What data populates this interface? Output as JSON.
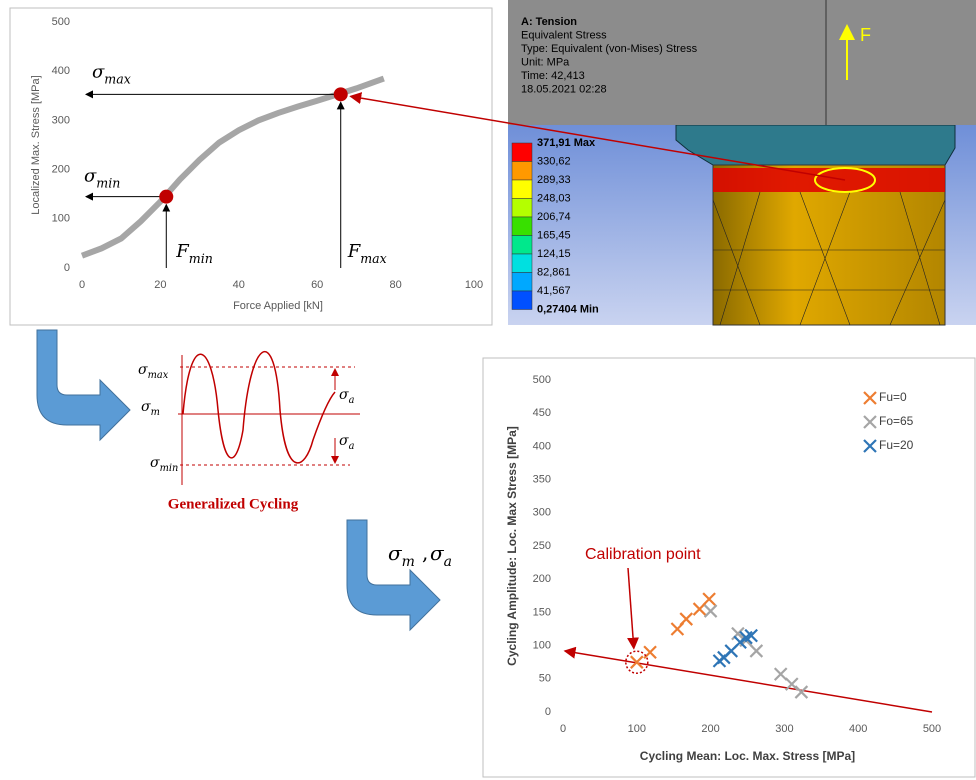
{
  "chart_data": [
    {
      "type": "line",
      "xlabel": "Force Applied [kN]",
      "ylabel": "Localized Max. Stress [MPa]",
      "x": [
        0,
        5,
        10,
        15,
        20,
        25,
        30,
        35,
        40,
        45,
        50,
        55,
        60,
        66,
        70,
        77
      ],
      "values": [
        25,
        40,
        60,
        95,
        135,
        180,
        220,
        255,
        280,
        300,
        315,
        328,
        340,
        355,
        365,
        385
      ],
      "color": "#a6a6a6",
      "markers": {
        "x": [
          21.5,
          66
        ],
        "values": [
          145,
          353
        ],
        "color": "#c00000"
      },
      "annotations": [
        {
          "text": "σ",
          "sub": "max"
        },
        {
          "text": "σ",
          "sub": "min"
        },
        {
          "text": "F",
          "sub": "min"
        },
        {
          "text": "F",
          "sub": "max"
        }
      ],
      "xlim": [
        0,
        100
      ],
      "xticks": [
        0,
        20,
        40,
        60,
        80,
        100
      ],
      "ylim": [
        0,
        500
      ],
      "yticks": [
        0,
        100,
        200,
        300,
        400,
        500
      ],
      "grid": false
    },
    {
      "type": "scatter",
      "xlabel": "Cycling Mean: Loc. Max. Stress [MPa]",
      "ylabel": "Cycling Amplitude: Loc. Max Stress [MPa]",
      "series": [
        {
          "name": "Fu=0",
          "color": "#ed7d31",
          "x": [
            100,
            118,
            155,
            167,
            185,
            198
          ],
          "values": [
            75,
            90,
            125,
            140,
            155,
            170
          ]
        },
        {
          "name": "Fo=65",
          "color": "#a5a5a5",
          "x": [
            200,
            237,
            248,
            262,
            295,
            310,
            323
          ],
          "values": [
            152,
            118,
            108,
            92,
            57,
            42,
            30
          ]
        },
        {
          "name": "Fu=20",
          "color": "#2e75b6",
          "x": [
            212,
            218,
            228,
            240,
            248,
            255
          ],
          "values": [
            77,
            82,
            92,
            105,
            112,
            115
          ]
        }
      ],
      "annotation": "Calibration point",
      "xlim": [
        0,
        500
      ],
      "xticks": [
        0,
        100,
        200,
        300,
        400,
        500
      ],
      "ylim": [
        0,
        500
      ],
      "yticks": [
        0,
        50,
        100,
        150,
        200,
        250,
        300,
        350,
        400,
        450,
        500
      ],
      "legend": "upper right",
      "grid": false
    }
  ],
  "fea_panel": {
    "header": [
      "A: Tension",
      "Equivalent Stress",
      "Type: Equivalent (von-Mises) Stress",
      "Unit: MPa",
      "Time: 42,413",
      "18.05.2021 02:28"
    ],
    "force_label": "F",
    "legend": [
      "371,91 Max",
      "330,62",
      "289,33",
      "248,03",
      "206,74",
      "165,45",
      "124,15",
      "82,861",
      "41,567",
      "0,27404 Min"
    ]
  },
  "diagram": {
    "labels": [
      {
        "text": "σ",
        "sub": "max"
      },
      {
        "text": "σ",
        "sub": "m"
      },
      {
        "text": "σ",
        "sub": "a"
      },
      {
        "text": "σ",
        "sub": "a"
      },
      {
        "text": "σ",
        "sub": "min"
      }
    ],
    "caption": "Generalized Cycling",
    "output": [
      {
        "text": "σ",
        "sub": "m"
      },
      {
        "text": "σ",
        "sub": "a"
      }
    ],
    "separator": ","
  }
}
